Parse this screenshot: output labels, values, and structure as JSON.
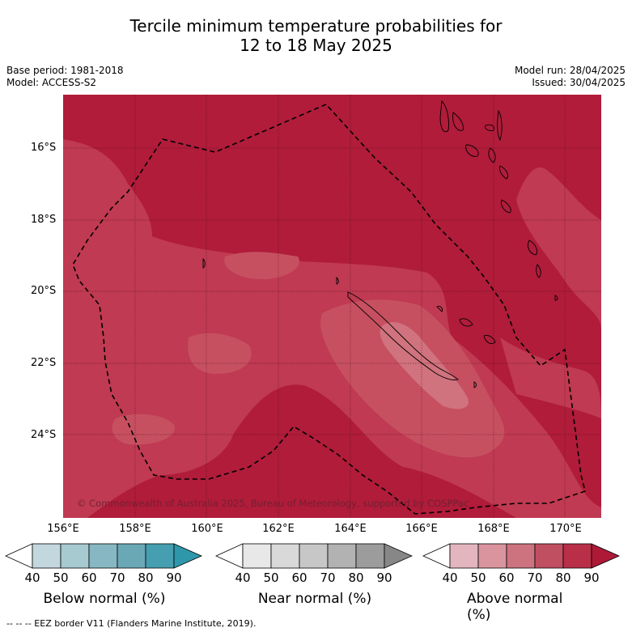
{
  "title": {
    "line1": "Tercile minimum temperature probabilities for",
    "line2": "12 to 18 May 2025"
  },
  "meta_left": {
    "base_period": "Base period: 1981-2018",
    "model": "Model: ACCESS-S2"
  },
  "meta_right": {
    "model_run": "Model run: 28/04/2025",
    "issued": "Issued: 30/04/2025"
  },
  "latitude_labels": [
    "16°S",
    "18°S",
    "20°S",
    "22°S",
    "24°S"
  ],
  "longitude_labels": [
    "156°E",
    "158°E",
    "160°E",
    "162°E",
    "164°E",
    "166°E",
    "168°E",
    "170°E"
  ],
  "copyright": "© Commonwealth of Australia 2025, Bureau of Meteorology, supported by COSPPac",
  "colorbars": [
    {
      "title": "Below normal (%)",
      "ticks": [
        "40",
        "50",
        "60",
        "70",
        "80",
        "90"
      ],
      "colors": [
        "#ffffff",
        "#c3d7df",
        "#a7c9d0",
        "#87b7c2",
        "#6aa8b6",
        "#459fb0",
        "#2f97aa"
      ]
    },
    {
      "title": "Near normal (%)",
      "ticks": [
        "40",
        "50",
        "60",
        "70",
        "80",
        "90"
      ],
      "colors": [
        "#ffffff",
        "#e8e8e8",
        "#d9d9d9",
        "#c7c7c7",
        "#b2b2b2",
        "#9c9c9c",
        "#878787"
      ]
    },
    {
      "title": "Above normal (%)",
      "ticks": [
        "40",
        "50",
        "60",
        "70",
        "80",
        "90"
      ],
      "colors": [
        "#ffffff",
        "#e3b6bf",
        "#d9949e",
        "#cc737f",
        "#c04f62",
        "#b92f48",
        "#ad1937"
      ]
    }
  ],
  "map_colors": {
    "above_90": "#b01c3a",
    "above_80": "#bf3a52",
    "above_70": "#c65060",
    "above_60": "#d0737f"
  },
  "footer": "--  --  -- EEZ border V11 (Flanders Marine Institute, 2019)."
}
